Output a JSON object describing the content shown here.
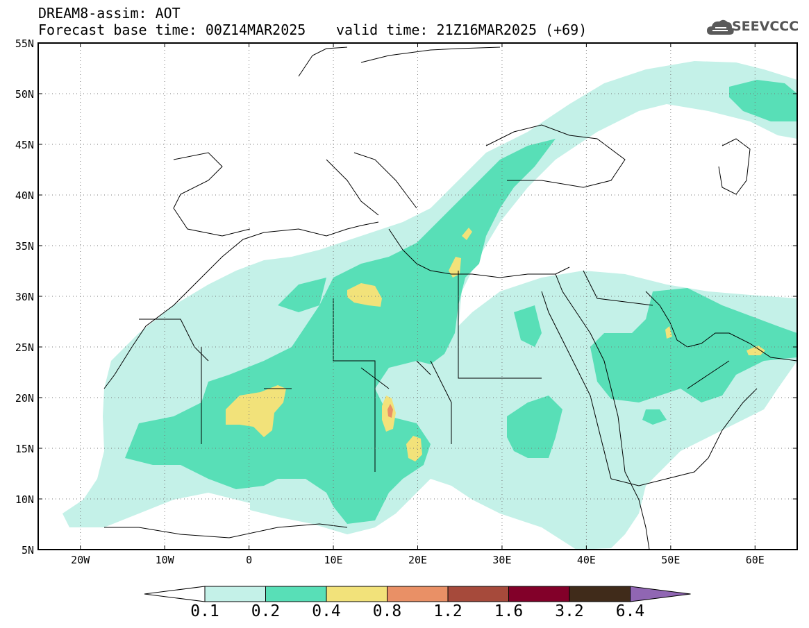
{
  "title": {
    "line1": "DREAM8-assim: AOT",
    "line2": "Forecast base time: 00Z14MAR2025",
    "valid": "valid time: 21Z16MAR2025 (+69)"
  },
  "logo": {
    "text": "SEEVCCC",
    "icon": "cloud-icon"
  },
  "axes": {
    "lat_labels": [
      "55N",
      "50N",
      "45N",
      "40N",
      "35N",
      "30N",
      "25N",
      "20N",
      "15N",
      "10N",
      "5N"
    ],
    "lon_labels": [
      "20W",
      "10W",
      "0",
      "10E",
      "20E",
      "30E",
      "40E",
      "50E",
      "60E"
    ],
    "lon_range": [
      -25,
      65
    ],
    "lat_range": [
      5,
      55
    ],
    "grid": "dotted"
  },
  "colorbar": {
    "levels": [
      "0.1",
      "0.2",
      "0.4",
      "0.8",
      "1.2",
      "1.6",
      "3.2",
      "6.4"
    ],
    "colors": [
      "#ffffff",
      "#c4f1e8",
      "#58dfb7",
      "#f2e27a",
      "#e99066",
      "#a64a3b",
      "#820029",
      "#402b1a",
      "#9066b3"
    ]
  },
  "field_colors": {
    "c1": "#c4f1e8",
    "c2": "#58dfb7",
    "c3": "#f2e27a",
    "c4": "#e99066"
  }
}
